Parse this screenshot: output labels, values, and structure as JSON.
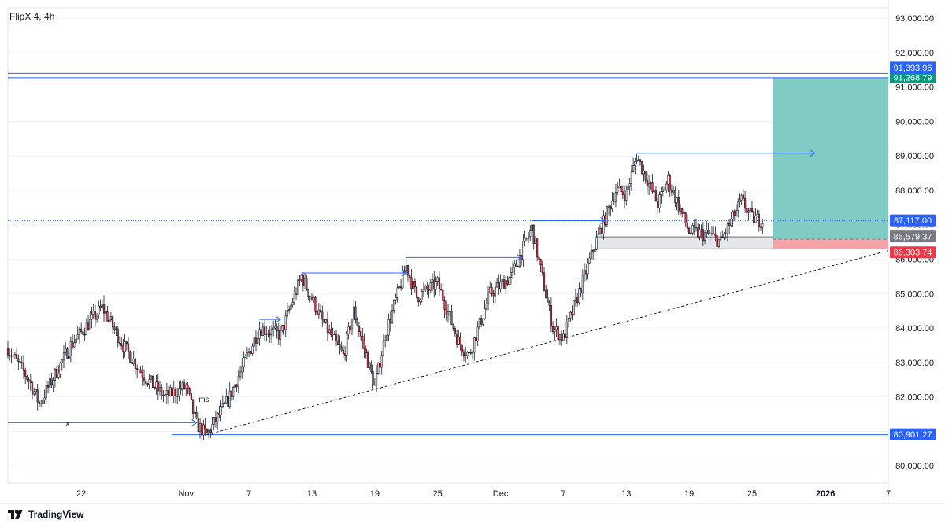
{
  "header": {
    "symbol_label": "FlipX 4, 4h"
  },
  "footer": {
    "brand": "TradingView"
  },
  "colors": {
    "up_body": "#ffffff",
    "down_body": "#f23645",
    "wick": "#131722",
    "blue": "#2962ff",
    "teal": "#089981",
    "red": "#f23645",
    "target_zone": "#80cbc4",
    "stop_zone": "#f7a1a8",
    "grid": "#f0f3fa",
    "axis_text": "#131722"
  },
  "chart_data": {
    "type": "candlestick",
    "timeframe": "4h",
    "title": "",
    "ylim": [
      79500,
      93300
    ],
    "y_ticks": [
      80000,
      81000,
      82000,
      83000,
      84000,
      85000,
      86000,
      87000,
      88000,
      89000,
      90000,
      91000,
      92000,
      93000
    ],
    "y_tick_labels": [
      "80,000.00",
      "81,000.00",
      "82,000.00",
      "83,000.00",
      "84,000.00",
      "85,000.00",
      "86,000.00",
      "87,000.00",
      "88,000.00",
      "89,000.00",
      "90,000.00",
      "91,000.00",
      "92,000.00",
      "93,000.00"
    ],
    "x_range": [
      "2025-10-15",
      "2026-01-07"
    ],
    "x_ticks": [
      {
        "date": "2025-10-22",
        "label": "22"
      },
      {
        "date": "2025-11-01",
        "label": "Nov"
      },
      {
        "date": "2025-11-07",
        "label": "7"
      },
      {
        "date": "2025-11-13",
        "label": "13"
      },
      {
        "date": "2025-11-19",
        "label": "19"
      },
      {
        "date": "2025-11-25",
        "label": "25"
      },
      {
        "date": "2025-12-01",
        "label": "Dec"
      },
      {
        "date": "2025-12-07",
        "label": "7"
      },
      {
        "date": "2025-12-13",
        "label": "13"
      },
      {
        "date": "2025-12-19",
        "label": "19"
      },
      {
        "date": "2025-12-25",
        "label": "25"
      },
      {
        "date": "2026-01-01",
        "label": "2026"
      },
      {
        "date": "2026-01-07",
        "label": "7"
      }
    ],
    "anchor_points": [
      [
        "2025-10-15",
        83400
      ],
      [
        "2025-10-17",
        82500
      ],
      [
        "2025-10-18",
        81800
      ],
      [
        "2025-10-21",
        83500
      ],
      [
        "2025-10-24",
        84600
      ],
      [
        "2025-10-26",
        83500
      ],
      [
        "2025-10-28",
        82600
      ],
      [
        "2025-10-30",
        82000
      ],
      [
        "2025-11-01",
        82300
      ],
      [
        "2025-11-02",
        81200
      ],
      [
        "2025-11-03",
        80900
      ],
      [
        "2025-11-05",
        81900
      ],
      [
        "2025-11-08",
        84000
      ],
      [
        "2025-11-10",
        83800
      ],
      [
        "2025-11-12",
        85500
      ],
      [
        "2025-11-14",
        84200
      ],
      [
        "2025-11-16",
        83200
      ],
      [
        "2025-11-17",
        84500
      ],
      [
        "2025-11-19",
        82300
      ],
      [
        "2025-11-20",
        83800
      ],
      [
        "2025-11-22",
        85800
      ],
      [
        "2025-11-23",
        84900
      ],
      [
        "2025-11-25",
        85300
      ],
      [
        "2025-11-27",
        83600
      ],
      [
        "2025-11-28",
        83200
      ],
      [
        "2025-11-30",
        85000
      ],
      [
        "2025-12-02",
        85500
      ],
      [
        "2025-12-04",
        86900
      ],
      [
        "2025-12-06",
        84000
      ],
      [
        "2025-12-07",
        83700
      ],
      [
        "2025-12-10",
        86400
      ],
      [
        "2025-12-12",
        88000
      ],
      [
        "2025-12-13",
        87900
      ],
      [
        "2025-12-14",
        89000
      ],
      [
        "2025-12-16",
        87600
      ],
      [
        "2025-12-17",
        88300
      ],
      [
        "2025-12-19",
        86800
      ],
      [
        "2025-12-21",
        86700
      ],
      [
        "2025-12-22",
        86500
      ],
      [
        "2025-12-24",
        87700
      ],
      [
        "2025-12-25",
        87200
      ],
      [
        "2025-12-26",
        87117
      ]
    ],
    "price_levels": [
      {
        "label": "91,268.79",
        "value": 91268.79,
        "role": "target"
      },
      {
        "label": "91,393.96",
        "value": 91393.96,
        "role": "level"
      },
      {
        "label": "87,117.00",
        "value": 87117.0,
        "role": "last-price"
      },
      {
        "label": "86,579.37",
        "value": 86579.37,
        "role": "entry"
      },
      {
        "label": "86,303.74",
        "value": 86303.74,
        "role": "stop"
      },
      {
        "label": "80,901.27",
        "value": 80901.27,
        "role": "support"
      }
    ],
    "annotations": [
      {
        "text": "x",
        "date": "2025-10-21",
        "value": 81250
      },
      {
        "text": "ms",
        "date": "2025-11-03",
        "value": 81950
      }
    ],
    "trendline": {
      "start": [
        "2025-11-03",
        80901.27
      ],
      "end": [
        "2026-01-07",
        86250
      ]
    },
    "structure_arrows": [
      {
        "start": [
          "2025-10-15",
          81250
        ],
        "end": [
          "2025-11-02",
          81250
        ]
      },
      {
        "start": [
          "2025-11-08",
          84250
        ],
        "end": [
          "2025-11-10",
          84250
        ]
      },
      {
        "start": [
          "2025-11-12",
          85600
        ],
        "end": [
          "2025-11-22",
          85600
        ]
      },
      {
        "start": [
          "2025-11-22",
          86050
        ],
        "end": [
          "2025-12-03",
          86050
        ]
      },
      {
        "start": [
          "2025-12-04",
          87120
        ],
        "end": [
          "2025-12-11",
          87120
        ]
      },
      {
        "start": [
          "2025-12-14",
          89080
        ],
        "end": [
          "2025-12-31",
          89080
        ]
      }
    ],
    "position": {
      "start": "2025-12-27",
      "end": "2026-01-07",
      "entry": 86579.37,
      "stop": 86303.74,
      "target": 91268.79
    },
    "demand_zone": {
      "start": "2025-12-10",
      "end": "2026-01-07",
      "low": 86303.74,
      "high": 86650
    }
  }
}
